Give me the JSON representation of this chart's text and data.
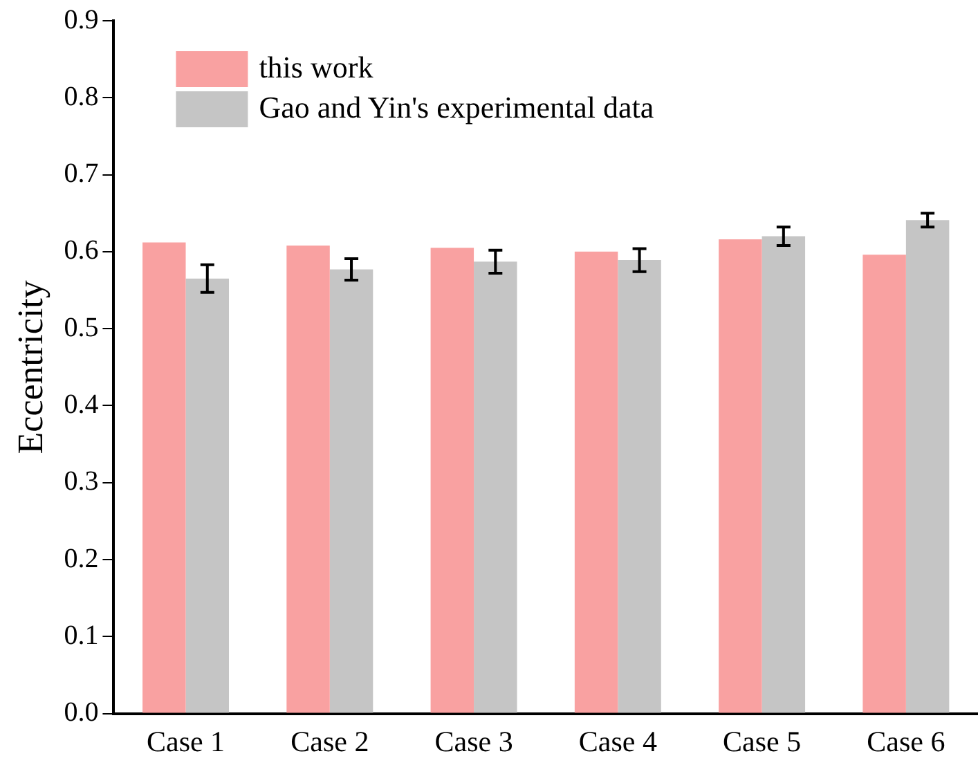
{
  "chart_data": {
    "type": "bar",
    "ylabel": "Eccentricity",
    "categories": [
      "Case 1",
      "Case 2",
      "Case 3",
      "Case 4",
      "Case 5",
      "Case 6"
    ],
    "series": [
      {
        "name": "this work",
        "color": "#f9a1a1",
        "values": [
          0.612,
          0.608,
          0.605,
          0.6,
          0.616,
          0.596
        ]
      },
      {
        "name": "Gao and Yin's experimental data",
        "color": "#c5c5c5",
        "values": [
          0.565,
          0.577,
          0.587,
          0.589,
          0.62,
          0.641
        ],
        "errors": [
          0.018,
          0.014,
          0.015,
          0.015,
          0.012,
          0.009
        ]
      }
    ],
    "ylim": [
      0,
      0.9
    ],
    "yticks": [
      {
        "value": 0,
        "label": "0.0"
      },
      0.1,
      0.2,
      0.3,
      0.4,
      0.5,
      0.6,
      0.7,
      0.8,
      0.9
    ],
    "grid": false,
    "legend": "top left"
  }
}
